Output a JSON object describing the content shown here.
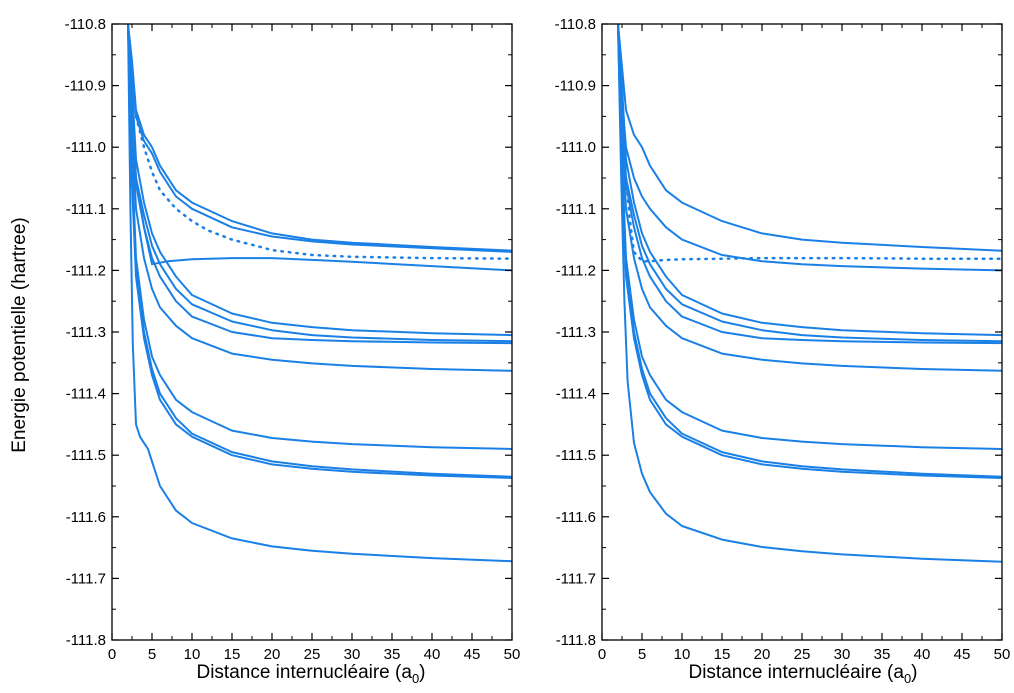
{
  "colors": {
    "series": "#1a80e6",
    "axis": "#000000"
  },
  "chart_data": [
    {
      "type": "line",
      "panel": "left",
      "xlabel": "Distance internucléaire (a",
      "xlabel_sub": "0",
      "xlabel_close": ")",
      "ylabel": "Energie potentielle (hartree)",
      "xlim": [
        0,
        50
      ],
      "ylim": [
        -111.8,
        -110.8
      ],
      "xticks": [
        "0",
        "5",
        "10",
        "15",
        "20",
        "25",
        "30",
        "35",
        "40",
        "45",
        "50"
      ],
      "yticks": [
        "-110.8",
        "-110.9",
        "-111.0",
        "-111.1",
        "-111.2",
        "-111.3",
        "-111.4",
        "-111.5",
        "-111.6",
        "-111.7",
        "-111.8"
      ],
      "grid": false,
      "series": [
        {
          "style": "solid",
          "x": [
            2.0,
            2.5,
            3,
            4,
            5,
            6,
            8,
            10,
            15,
            20,
            25,
            30,
            40,
            50
          ],
          "y": [
            -110.8,
            -110.86,
            -110.94,
            -110.98,
            -111.0,
            -111.03,
            -111.07,
            -111.09,
            -111.12,
            -111.14,
            -111.15,
            -111.155,
            -111.162,
            -111.168
          ]
        },
        {
          "style": "solid",
          "x": [
            2.0,
            2.5,
            3,
            4,
            5,
            6,
            8,
            10,
            15,
            20,
            25,
            30,
            40,
            50
          ],
          "y": [
            -110.8,
            -110.88,
            -110.95,
            -110.99,
            -111.01,
            -111.04,
            -111.08,
            -111.1,
            -111.13,
            -111.145,
            -111.153,
            -111.158,
            -111.164,
            -111.17
          ]
        },
        {
          "style": "dotted",
          "x": [
            3,
            4,
            5,
            6,
            8,
            10,
            12,
            15,
            18,
            20,
            25,
            30,
            40,
            50
          ],
          "y": [
            -110.95,
            -111.0,
            -111.04,
            -111.07,
            -111.1,
            -111.12,
            -111.135,
            -111.15,
            -111.16,
            -111.167,
            -111.175,
            -111.178,
            -111.18,
            -111.181
          ]
        },
        {
          "style": "solid",
          "x": [
            2.0,
            2.5,
            3,
            4,
            5,
            7,
            10,
            15,
            20,
            25,
            30,
            40,
            50
          ],
          "y": [
            -110.8,
            -110.95,
            -111.05,
            -111.13,
            -111.19,
            -111.185,
            -111.182,
            -111.18,
            -111.18,
            -111.183,
            -111.186,
            -111.193,
            -111.2
          ]
        },
        {
          "style": "solid",
          "x": [
            2.0,
            2.5,
            3,
            4,
            5,
            6,
            8,
            10,
            15,
            20,
            25,
            30,
            40,
            50
          ],
          "y": [
            -110.8,
            -110.9,
            -111.02,
            -111.09,
            -111.14,
            -111.17,
            -111.21,
            -111.24,
            -111.27,
            -111.285,
            -111.292,
            -111.297,
            -111.302,
            -111.305
          ]
        },
        {
          "style": "solid",
          "x": [
            2.0,
            2.5,
            3,
            4,
            5,
            6,
            8,
            10,
            15,
            20,
            25,
            30,
            40,
            50
          ],
          "y": [
            -110.8,
            -110.92,
            -111.05,
            -111.11,
            -111.16,
            -111.19,
            -111.23,
            -111.255,
            -111.283,
            -111.297,
            -111.305,
            -111.309,
            -111.313,
            -111.315
          ]
        },
        {
          "style": "solid",
          "x": [
            2.0,
            2.5,
            3,
            4,
            5,
            6,
            8,
            10,
            15,
            20,
            25,
            30,
            40,
            50
          ],
          "y": [
            -110.8,
            -110.93,
            -111.06,
            -111.13,
            -111.18,
            -111.21,
            -111.25,
            -111.275,
            -111.3,
            -111.31,
            -111.313,
            -111.315,
            -111.317,
            -111.318
          ]
        },
        {
          "style": "solid",
          "x": [
            2.0,
            2.5,
            3,
            4,
            5,
            6,
            8,
            10,
            15,
            20,
            25,
            30,
            40,
            50
          ],
          "y": [
            -110.8,
            -110.97,
            -111.1,
            -111.18,
            -111.23,
            -111.26,
            -111.29,
            -111.31,
            -111.335,
            -111.345,
            -111.351,
            -111.355,
            -111.36,
            -111.363
          ]
        },
        {
          "style": "solid",
          "x": [
            2.0,
            2.5,
            3,
            4,
            5,
            6,
            8,
            10,
            15,
            20,
            25,
            30,
            40,
            50
          ],
          "y": [
            -110.8,
            -111.02,
            -111.18,
            -111.28,
            -111.34,
            -111.37,
            -111.41,
            -111.43,
            -111.46,
            -111.472,
            -111.478,
            -111.482,
            -111.487,
            -111.49
          ]
        },
        {
          "style": "solid",
          "x": [
            2.0,
            2.5,
            3,
            4,
            5,
            6,
            8,
            10,
            15,
            20,
            25,
            30,
            40,
            50
          ],
          "y": [
            -110.8,
            -111.05,
            -111.2,
            -111.3,
            -111.36,
            -111.4,
            -111.44,
            -111.465,
            -111.495,
            -111.51,
            -111.518,
            -111.523,
            -111.53,
            -111.535
          ]
        },
        {
          "style": "solid",
          "x": [
            2.0,
            2.5,
            3,
            4,
            5,
            6,
            8,
            10,
            15,
            20,
            25,
            30,
            40,
            50
          ],
          "y": [
            -110.8,
            -111.06,
            -111.21,
            -111.31,
            -111.37,
            -111.41,
            -111.45,
            -111.47,
            -111.5,
            -111.515,
            -111.522,
            -111.527,
            -111.533,
            -111.537
          ]
        },
        {
          "style": "solid",
          "x": [
            2.0,
            2.3,
            2.6,
            3,
            3.5,
            4,
            4.5,
            5,
            6,
            8,
            10,
            15,
            20,
            25,
            30,
            40,
            50
          ],
          "y": [
            -110.8,
            -111.1,
            -111.32,
            -111.45,
            -111.47,
            -111.48,
            -111.49,
            -111.51,
            -111.55,
            -111.59,
            -111.61,
            -111.635,
            -111.648,
            -111.655,
            -111.66,
            -111.667,
            -111.672
          ]
        }
      ]
    },
    {
      "type": "line",
      "panel": "right",
      "xlabel": "Distance internucléaire (a",
      "xlabel_sub": "0",
      "xlabel_close": ")",
      "ylabel": "",
      "xlim": [
        0,
        50
      ],
      "ylim": [
        -111.8,
        -110.8
      ],
      "xticks": [
        "0",
        "5",
        "10",
        "15",
        "20",
        "25",
        "30",
        "35",
        "40",
        "45",
        "50"
      ],
      "yticks": [
        "-110.8",
        "-110.9",
        "-111.0",
        "-111.1",
        "-111.2",
        "-111.3",
        "-111.4",
        "-111.5",
        "-111.6",
        "-111.7",
        "-111.8"
      ],
      "grid": false,
      "series": [
        {
          "style": "solid",
          "x": [
            2.0,
            2.5,
            3,
            4,
            5,
            6,
            8,
            10,
            15,
            20,
            25,
            30,
            40,
            50
          ],
          "y": [
            -110.8,
            -110.87,
            -110.94,
            -110.98,
            -111.0,
            -111.03,
            -111.07,
            -111.09,
            -111.12,
            -111.14,
            -111.15,
            -111.155,
            -111.162,
            -111.168
          ]
        },
        {
          "style": "solid",
          "x": [
            2.0,
            2.5,
            3,
            4,
            5,
            6,
            8,
            10,
            15,
            20,
            25,
            30,
            40,
            50
          ],
          "y": [
            -110.8,
            -110.92,
            -111.0,
            -111.05,
            -111.08,
            -111.1,
            -111.13,
            -111.15,
            -111.175,
            -111.185,
            -111.19,
            -111.193,
            -111.197,
            -111.2
          ]
        },
        {
          "style": "dotted",
          "x": [
            3,
            3.5,
            4,
            5,
            6,
            8,
            10,
            15,
            20,
            25,
            30,
            40,
            50
          ],
          "y": [
            -111.05,
            -111.12,
            -111.17,
            -111.185,
            -111.185,
            -111.183,
            -111.182,
            -111.181,
            -111.18,
            -111.18,
            -111.18,
            -111.181,
            -111.181
          ]
        },
        {
          "style": "solid",
          "x": [
            2.0,
            2.5,
            3,
            4,
            5,
            6,
            8,
            10,
            15,
            20,
            25,
            30,
            40,
            50
          ],
          "y": [
            -110.8,
            -110.9,
            -111.02,
            -111.09,
            -111.14,
            -111.17,
            -111.21,
            -111.24,
            -111.27,
            -111.285,
            -111.292,
            -111.297,
            -111.302,
            -111.305
          ]
        },
        {
          "style": "solid",
          "x": [
            2.0,
            2.5,
            3,
            4,
            5,
            6,
            8,
            10,
            15,
            20,
            25,
            30,
            40,
            50
          ],
          "y": [
            -110.8,
            -110.92,
            -111.05,
            -111.11,
            -111.16,
            -111.19,
            -111.23,
            -111.255,
            -111.283,
            -111.297,
            -111.305,
            -111.309,
            -111.313,
            -111.315
          ]
        },
        {
          "style": "solid",
          "x": [
            2.0,
            2.5,
            3,
            4,
            5,
            6,
            8,
            10,
            15,
            20,
            25,
            30,
            40,
            50
          ],
          "y": [
            -110.8,
            -110.93,
            -111.06,
            -111.13,
            -111.18,
            -111.21,
            -111.25,
            -111.275,
            -111.3,
            -111.31,
            -111.313,
            -111.315,
            -111.317,
            -111.318
          ]
        },
        {
          "style": "solid",
          "x": [
            2.0,
            2.5,
            3,
            4,
            5,
            6,
            8,
            10,
            15,
            20,
            25,
            30,
            40,
            50
          ],
          "y": [
            -110.8,
            -110.97,
            -111.1,
            -111.18,
            -111.23,
            -111.26,
            -111.29,
            -111.31,
            -111.335,
            -111.345,
            -111.351,
            -111.355,
            -111.36,
            -111.363
          ]
        },
        {
          "style": "solid",
          "x": [
            2.0,
            2.5,
            3,
            4,
            5,
            6,
            8,
            10,
            15,
            20,
            25,
            30,
            40,
            50
          ],
          "y": [
            -110.8,
            -111.02,
            -111.18,
            -111.28,
            -111.34,
            -111.37,
            -111.41,
            -111.43,
            -111.46,
            -111.472,
            -111.478,
            -111.482,
            -111.487,
            -111.49
          ]
        },
        {
          "style": "solid",
          "x": [
            2.0,
            2.5,
            3,
            4,
            5,
            6,
            8,
            10,
            15,
            20,
            25,
            30,
            40,
            50
          ],
          "y": [
            -110.8,
            -111.05,
            -111.2,
            -111.3,
            -111.36,
            -111.4,
            -111.44,
            -111.465,
            -111.495,
            -111.51,
            -111.518,
            -111.523,
            -111.53,
            -111.535
          ]
        },
        {
          "style": "solid",
          "x": [
            2.0,
            2.5,
            3,
            4,
            5,
            6,
            8,
            10,
            15,
            20,
            25,
            30,
            40,
            50
          ],
          "y": [
            -110.8,
            -111.06,
            -111.21,
            -111.31,
            -111.37,
            -111.41,
            -111.45,
            -111.47,
            -111.5,
            -111.515,
            -111.522,
            -111.527,
            -111.533,
            -111.537
          ]
        },
        {
          "style": "solid",
          "x": [
            2.0,
            2.4,
            2.8,
            3.2,
            4,
            5,
            6,
            8,
            10,
            15,
            20,
            25,
            30,
            40,
            50
          ],
          "y": [
            -110.8,
            -111.05,
            -111.25,
            -111.38,
            -111.48,
            -111.53,
            -111.56,
            -111.595,
            -111.615,
            -111.637,
            -111.649,
            -111.656,
            -111.661,
            -111.668,
            -111.673
          ]
        }
      ]
    }
  ]
}
